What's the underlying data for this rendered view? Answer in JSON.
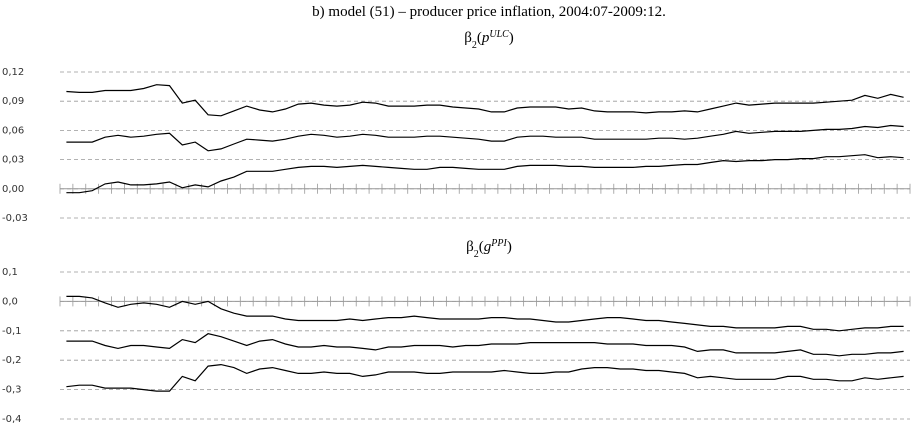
{
  "title": "b) model (51) – producer price inflation, 2004:07-2009:12.",
  "chart_data": [
    {
      "type": "line",
      "title_parts": [
        "β",
        "2",
        "(",
        "p",
        "ULC",
        ")"
      ],
      "categories": [
        null,
        null,
        null,
        null,
        null,
        null,
        null,
        null,
        null,
        null,
        null,
        null,
        null,
        null,
        null,
        null,
        null,
        null,
        null,
        null,
        null,
        null,
        null,
        null,
        null,
        null,
        null,
        null,
        null,
        null,
        null,
        null,
        null,
        null,
        null,
        null,
        null,
        null,
        null,
        null,
        null,
        null,
        null,
        null,
        null,
        null,
        null,
        null,
        null,
        null,
        null,
        null,
        null,
        null,
        null,
        null,
        null,
        null,
        null,
        null,
        null,
        null,
        null,
        null,
        null,
        null
      ],
      "series": [
        {
          "color": "#000000",
          "values": [
            0.1,
            0.099,
            0.099,
            0.101,
            0.101,
            0.101,
            0.103,
            0.107,
            0.106,
            0.088,
            0.091,
            0.076,
            0.075,
            0.08,
            0.085,
            0.081,
            0.079,
            0.082,
            0.087,
            0.088,
            0.086,
            0.085,
            0.086,
            0.089,
            0.088,
            0.085,
            0.085,
            0.085,
            0.086,
            0.086,
            0.084,
            0.083,
            0.082,
            0.079,
            0.079,
            0.083,
            0.084,
            0.084,
            0.084,
            0.082,
            0.083,
            0.08,
            0.079,
            0.079,
            0.079,
            0.078,
            0.079,
            0.079,
            0.08,
            0.079,
            0.082,
            0.085,
            0.088,
            0.086,
            0.087,
            0.088,
            0.088,
            0.088,
            0.088,
            0.089,
            0.09,
            0.091,
            0.096,
            0.093,
            0.097,
            0.094
          ]
        },
        {
          "color": "#000000",
          "values": [
            0.048,
            0.048,
            0.048,
            0.053,
            0.055,
            0.053,
            0.054,
            0.056,
            0.057,
            0.045,
            0.048,
            0.039,
            0.041,
            0.046,
            0.051,
            0.05,
            0.049,
            0.051,
            0.054,
            0.056,
            0.055,
            0.053,
            0.054,
            0.056,
            0.055,
            0.053,
            0.053,
            0.053,
            0.054,
            0.054,
            0.053,
            0.052,
            0.051,
            0.049,
            0.049,
            0.053,
            0.054,
            0.054,
            0.053,
            0.053,
            0.053,
            0.051,
            0.051,
            0.051,
            0.051,
            0.051,
            0.052,
            0.052,
            0.051,
            0.052,
            0.054,
            0.056,
            0.059,
            0.057,
            0.058,
            0.059,
            0.059,
            0.059,
            0.06,
            0.061,
            0.061,
            0.062,
            0.064,
            0.063,
            0.065,
            0.064
          ]
        },
        {
          "color": "#000000",
          "values": [
            -0.004,
            -0.004,
            -0.002,
            0.005,
            0.007,
            0.004,
            0.004,
            0.005,
            0.007,
            0.001,
            0.004,
            0.002,
            0.008,
            0.012,
            0.018,
            0.018,
            0.018,
            0.02,
            0.022,
            0.023,
            0.023,
            0.022,
            0.023,
            0.024,
            0.023,
            0.022,
            0.021,
            0.02,
            0.02,
            0.022,
            0.022,
            0.021,
            0.02,
            0.02,
            0.02,
            0.023,
            0.024,
            0.024,
            0.024,
            0.023,
            0.023,
            0.022,
            0.022,
            0.022,
            0.022,
            0.023,
            0.023,
            0.024,
            0.025,
            0.025,
            0.027,
            0.029,
            0.028,
            0.029,
            0.029,
            0.03,
            0.03,
            0.031,
            0.031,
            0.033,
            0.033,
            0.034,
            0.035,
            0.032,
            0.033,
            0.032
          ]
        }
      ],
      "ylim": [
        -0.03,
        0.12
      ],
      "yticks": [
        {
          "value": 0.12,
          "label": "0,12"
        },
        {
          "value": 0.09,
          "label": "0,09"
        },
        {
          "value": 0.06,
          "label": "0,06"
        },
        {
          "value": 0.03,
          "label": "0,03"
        },
        {
          "value": 0,
          "label": "0,00"
        },
        {
          "value": -0.03,
          "label": "-0,03"
        }
      ],
      "grid": true
    },
    {
      "type": "line",
      "title_parts": [
        "β",
        "2",
        "(",
        "g",
        "PPI",
        ")"
      ],
      "categories": [
        null,
        null,
        null,
        null,
        null,
        null,
        null,
        null,
        null,
        null,
        null,
        null,
        null,
        null,
        null,
        null,
        null,
        null,
        null,
        null,
        null,
        null,
        null,
        null,
        null,
        null,
        null,
        null,
        null,
        null,
        null,
        null,
        null,
        null,
        null,
        null,
        null,
        null,
        null,
        null,
        null,
        null,
        null,
        null,
        null,
        null,
        null,
        null,
        null,
        null,
        null,
        null,
        null,
        null,
        null,
        null,
        null,
        null,
        null,
        null,
        null,
        null,
        null,
        null,
        null,
        null
      ],
      "series": [
        {
          "color": "#000000",
          "values": [
            0.017,
            0.017,
            0.012,
            -0.005,
            -0.02,
            -0.01,
            -0.005,
            -0.01,
            -0.02,
            0.0,
            -0.01,
            0.0,
            -0.025,
            -0.04,
            -0.05,
            -0.05,
            -0.05,
            -0.06,
            -0.065,
            -0.065,
            -0.065,
            -0.065,
            -0.06,
            -0.065,
            -0.06,
            -0.055,
            -0.055,
            -0.05,
            -0.055,
            -0.06,
            -0.06,
            -0.06,
            -0.06,
            -0.055,
            -0.055,
            -0.06,
            -0.06,
            -0.065,
            -0.07,
            -0.07,
            -0.065,
            -0.06,
            -0.055,
            -0.055,
            -0.06,
            -0.065,
            -0.065,
            -0.07,
            -0.075,
            -0.08,
            -0.085,
            -0.085,
            -0.09,
            -0.09,
            -0.09,
            -0.09,
            -0.085,
            -0.085,
            -0.095,
            -0.095,
            -0.1,
            -0.095,
            -0.09,
            -0.09,
            -0.085,
            -0.085
          ]
        },
        {
          "color": "#000000",
          "values": [
            -0.135,
            -0.135,
            -0.135,
            -0.15,
            -0.16,
            -0.15,
            -0.15,
            -0.155,
            -0.16,
            -0.13,
            -0.14,
            -0.11,
            -0.12,
            -0.135,
            -0.15,
            -0.135,
            -0.13,
            -0.145,
            -0.155,
            -0.155,
            -0.15,
            -0.155,
            -0.155,
            -0.16,
            -0.165,
            -0.155,
            -0.155,
            -0.15,
            -0.15,
            -0.15,
            -0.155,
            -0.15,
            -0.15,
            -0.145,
            -0.145,
            -0.145,
            -0.14,
            -0.14,
            -0.14,
            -0.14,
            -0.14,
            -0.14,
            -0.145,
            -0.145,
            -0.145,
            -0.15,
            -0.15,
            -0.15,
            -0.155,
            -0.17,
            -0.165,
            -0.165,
            -0.175,
            -0.175,
            -0.175,
            -0.175,
            -0.17,
            -0.165,
            -0.18,
            -0.18,
            -0.185,
            -0.18,
            -0.18,
            -0.175,
            -0.175,
            -0.17
          ]
        },
        {
          "color": "#000000",
          "values": [
            -0.29,
            -0.285,
            -0.285,
            -0.295,
            -0.295,
            -0.295,
            -0.3,
            -0.305,
            -0.305,
            -0.255,
            -0.27,
            -0.22,
            -0.215,
            -0.225,
            -0.245,
            -0.23,
            -0.225,
            -0.235,
            -0.245,
            -0.245,
            -0.24,
            -0.245,
            -0.245,
            -0.255,
            -0.25,
            -0.24,
            -0.24,
            -0.24,
            -0.245,
            -0.245,
            -0.24,
            -0.24,
            -0.24,
            -0.24,
            -0.235,
            -0.24,
            -0.245,
            -0.245,
            -0.24,
            -0.24,
            -0.23,
            -0.225,
            -0.225,
            -0.23,
            -0.23,
            -0.235,
            -0.235,
            -0.24,
            -0.245,
            -0.26,
            -0.255,
            -0.26,
            -0.265,
            -0.265,
            -0.265,
            -0.265,
            -0.255,
            -0.255,
            -0.265,
            -0.265,
            -0.27,
            -0.27,
            -0.26,
            -0.265,
            -0.26,
            -0.255
          ]
        }
      ],
      "ylim": [
        -0.4,
        0.1
      ],
      "yticks": [
        {
          "value": 0.1,
          "label": "0,1"
        },
        {
          "value": 0,
          "label": "0,0"
        },
        {
          "value": -0.1,
          "label": "-0,1"
        },
        {
          "value": -0.2,
          "label": "-0,2"
        },
        {
          "value": -0.3,
          "label": "-0,3"
        },
        {
          "value": -0.4,
          "label": "-0,4"
        }
      ],
      "grid": true
    }
  ]
}
